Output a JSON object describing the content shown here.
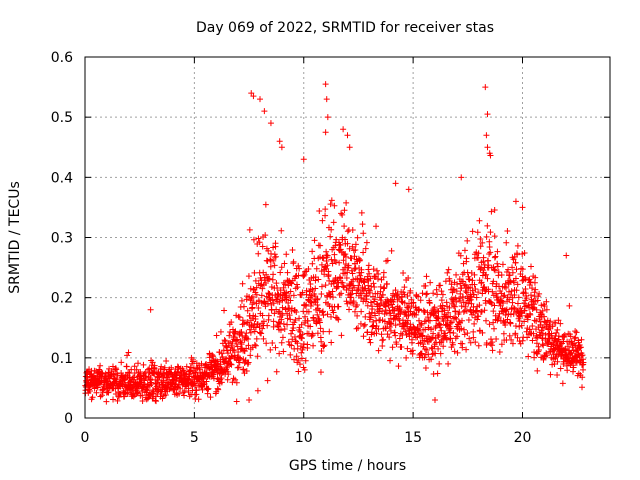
{
  "chart_data": {
    "type": "scatter",
    "title": "Day 069 of 2022, SRMTID for receiver stas",
    "xlabel": "GPS time / hours",
    "ylabel": "SRMTID / TECUs",
    "xlim": [
      0,
      24
    ],
    "ylim": [
      0,
      0.6
    ],
    "xticks": [
      0,
      5,
      10,
      15,
      20
    ],
    "yticks": [
      0,
      0.1,
      0.2,
      0.3,
      0.4,
      0.5,
      0.6
    ],
    "xtick_labels": [
      "0",
      "5",
      "10",
      "15",
      "20"
    ],
    "ytick_labels": [
      "0",
      "0.1",
      "0.2",
      "0.3",
      "0.4",
      "0.5",
      "0.6"
    ],
    "grid": true,
    "marker": "+",
    "color": "#ff0000",
    "approx_point_count": 2500,
    "series": [
      {
        "name": "SRMTID",
        "note": "dense + markers, one sample roughly every 30 s from 0 to ~22.8 h; representative envelope below",
        "profile": {
          "x": [
            0,
            1,
            2,
            3,
            4,
            5,
            6,
            6.8,
            7.3,
            8,
            9,
            10,
            11,
            12,
            13,
            14,
            15,
            16,
            17,
            18,
            18.5,
            19,
            20,
            21,
            22,
            22.8
          ],
          "y_median": [
            0.06,
            0.06,
            0.055,
            0.06,
            0.06,
            0.065,
            0.08,
            0.11,
            0.15,
            0.2,
            0.19,
            0.17,
            0.22,
            0.26,
            0.19,
            0.18,
            0.16,
            0.14,
            0.18,
            0.21,
            0.24,
            0.19,
            0.2,
            0.14,
            0.11,
            0.1
          ],
          "y_spread": [
            0.02,
            0.025,
            0.025,
            0.03,
            0.025,
            0.025,
            0.035,
            0.05,
            0.08,
            0.1,
            0.09,
            0.08,
            0.1,
            0.09,
            0.07,
            0.07,
            0.06,
            0.06,
            0.07,
            0.08,
            0.1,
            0.08,
            0.08,
            0.05,
            0.04,
            0.03
          ]
        },
        "notable_points": [
          {
            "x": 7.6,
            "y": 0.54
          },
          {
            "x": 7.7,
            "y": 0.535
          },
          {
            "x": 8.0,
            "y": 0.53
          },
          {
            "x": 8.2,
            "y": 0.51
          },
          {
            "x": 8.5,
            "y": 0.49
          },
          {
            "x": 8.9,
            "y": 0.46
          },
          {
            "x": 9.0,
            "y": 0.45
          },
          {
            "x": 10.0,
            "y": 0.43
          },
          {
            "x": 11.0,
            "y": 0.555
          },
          {
            "x": 11.05,
            "y": 0.53
          },
          {
            "x": 11.1,
            "y": 0.5
          },
          {
            "x": 11.0,
            "y": 0.475
          },
          {
            "x": 11.8,
            "y": 0.48
          },
          {
            "x": 12.0,
            "y": 0.47
          },
          {
            "x": 12.1,
            "y": 0.45
          },
          {
            "x": 14.2,
            "y": 0.39
          },
          {
            "x": 14.8,
            "y": 0.38
          },
          {
            "x": 17.2,
            "y": 0.4
          },
          {
            "x": 18.3,
            "y": 0.55
          },
          {
            "x": 18.4,
            "y": 0.505
          },
          {
            "x": 18.35,
            "y": 0.47
          },
          {
            "x": 18.4,
            "y": 0.45
          },
          {
            "x": 18.5,
            "y": 0.44
          },
          {
            "x": 19.7,
            "y": 0.36
          },
          {
            "x": 20.0,
            "y": 0.35
          },
          {
            "x": 3.0,
            "y": 0.18
          },
          {
            "x": 7.5,
            "y": 0.03
          },
          {
            "x": 16.0,
            "y": 0.03
          },
          {
            "x": 22.0,
            "y": 0.27
          }
        ]
      }
    ]
  }
}
